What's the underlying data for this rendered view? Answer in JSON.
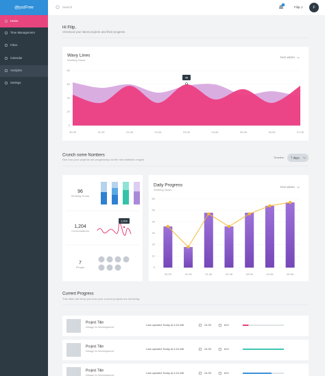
{
  "sidebar": {
    "logo": "@justFree",
    "menu": [
      "Home",
      "Time Management",
      "Inbox",
      "Calendar",
      "Analytics",
      "Settings"
    ]
  },
  "topbar": {
    "search": "Search",
    "user": "Filip J.",
    "avatar": "F"
  },
  "greeting": {
    "title": "Hi Filip,",
    "subtitle": "Checkout your latest projects and their progress"
  },
  "wavy_chart": {
    "type": "area",
    "title": "Wavy Lines",
    "subtitle": "Working Hours",
    "filter": "THIS WEEK",
    "categories": [
      "30.05",
      "31.05",
      "01.06",
      "02.06",
      "03.06",
      "04.06",
      "05.06",
      "06.06",
      "07.06"
    ],
    "ylim": [
      0,
      80
    ],
    "yticks": [
      0,
      20,
      40,
      60,
      80
    ],
    "tooltip": 48,
    "series": [
      {
        "color": "#d8a9df",
        "values": [
          63,
          55,
          60,
          48,
          58,
          60,
          45,
          50,
          42
        ]
      },
      {
        "color": "#ec3f83",
        "values": [
          45,
          33,
          58,
          33,
          60,
          38,
          53,
          33,
          58
        ]
      }
    ]
  },
  "numbers": {
    "title": "Crunch some Numbers",
    "subtitle": "See how your projects are progressing via the new statistics engine",
    "timeline_label": "Timeline",
    "timeline_value": "7 days"
  },
  "stats": [
    {
      "value": "96",
      "label": "Working Hours"
    },
    {
      "value": "1,204",
      "label": "Conversations",
      "tooltip": "1,204"
    },
    {
      "value": "7",
      "label": "People"
    }
  ],
  "daily_chart": {
    "type": "bar",
    "title": "Daily Progress",
    "subtitle": "Working Hours",
    "filter": "THIS WEEK",
    "categories": [
      "30.05",
      "31.05",
      "01.06",
      "02.06",
      "03.06",
      "04.06",
      "05.06"
    ],
    "ylim": [
      0,
      60
    ],
    "yticks": [
      0,
      10,
      20,
      30,
      40,
      50,
      60
    ],
    "series": [
      {
        "type": "bar",
        "color": "#8a5ccc",
        "values": [
          36,
          18,
          48,
          36,
          48,
          54,
          57
        ]
      },
      {
        "type": "line",
        "color": "#f5b731",
        "values": [
          36,
          18,
          47,
          36,
          47,
          54,
          57
        ]
      }
    ]
  },
  "progress": {
    "title": "Current Progress",
    "subtitle": "This table will show you how your current projects are behaving.",
    "rows": [
      {
        "title": "Project Title",
        "category": "Design & Development",
        "updated": "Last updated Today at 4:24 AM",
        "time": "24:30",
        "comments": "624",
        "progress": 14,
        "color": "#e83e7a"
      },
      {
        "title": "Project Title",
        "category": "Design & Development",
        "updated": "Last updated Today at 4:24 AM",
        "time": "24:30",
        "comments": "624",
        "progress": 100,
        "color": "#3cc7b5"
      },
      {
        "title": "Project Title",
        "category": "Design & Development",
        "updated": "Last updated Today at 4:24 AM",
        "time": "24:30",
        "comments": "624",
        "progress": 70,
        "color": "#3a8fd9"
      }
    ]
  }
}
